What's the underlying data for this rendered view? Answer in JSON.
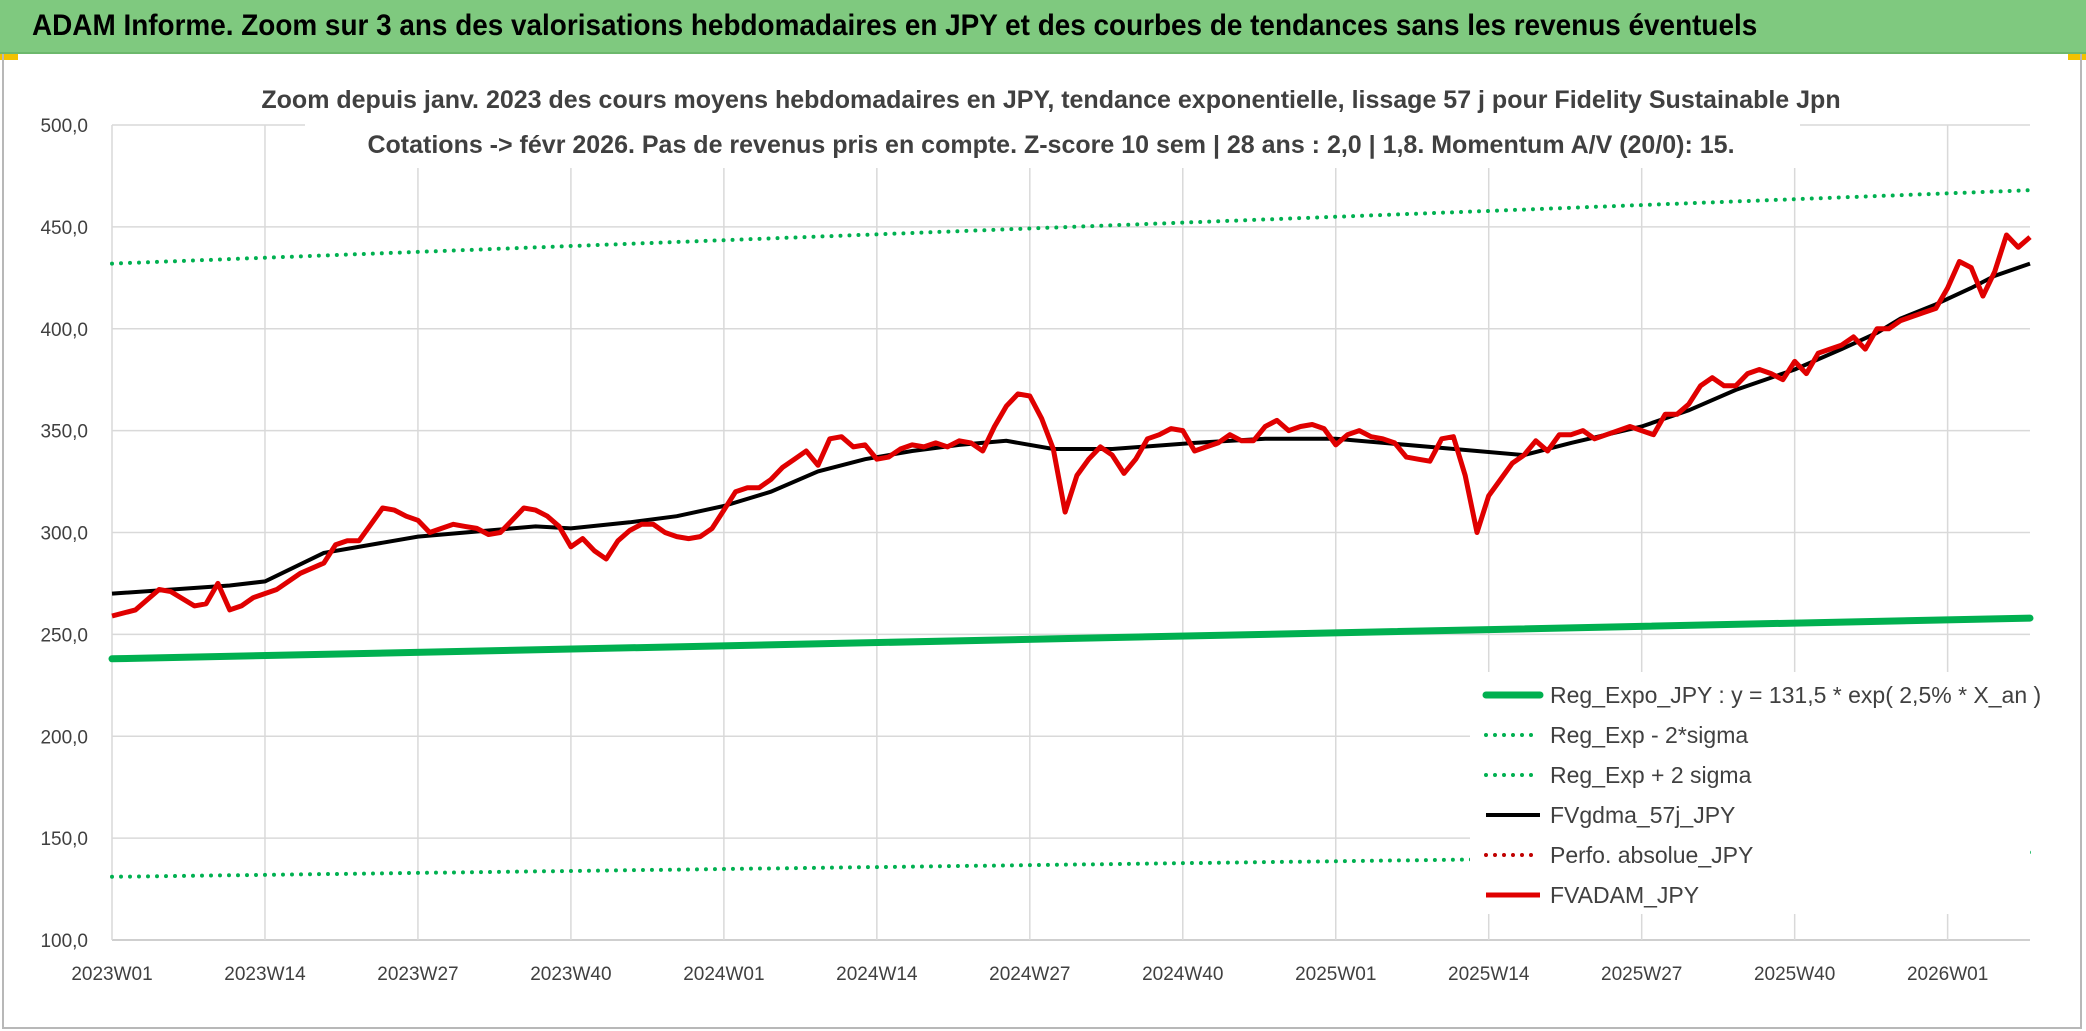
{
  "header": {
    "title": "ADAM Informe. Zoom sur 3 ans des valorisations hebdomadaires en JPY et des courbes de tendances sans les revenus éventuels"
  },
  "colors": {
    "header_bg": "#7fc97f",
    "reg_expo": "#00b050",
    "sigma": "#00b050",
    "fvgdma": "#000000",
    "perfo": "#c00000",
    "fvadam": "#e00000"
  },
  "chart_data": {
    "type": "line",
    "title_line1": "Zoom depuis janv. 2023 des cours moyens hebdomadaires en JPY, tendance exponentielle, lissage 57 j pour Fidelity Sustainable Jpn",
    "title_line2": "Cotations -> févr 2026. Pas de revenus pris en compte. Z-score 10 sem | 28 ans : 2,0 | 1,8. Momentum A/V (20/0): 15.",
    "x_tick_labels": [
      "2023W01",
      "2023W14",
      "2023W27",
      "2023W40",
      "2024W01",
      "2024W14",
      "2024W27",
      "2024W40",
      "2025W01",
      "2025W14",
      "2025W27",
      "2025W40",
      "2026W01"
    ],
    "y_tick_labels": [
      "100,0",
      "150,0",
      "200,0",
      "250,0",
      "300,0",
      "350,0",
      "400,0",
      "450,0",
      "500,0"
    ],
    "ylim": [
      100,
      500
    ],
    "x_week_range": [
      0,
      163
    ],
    "grid": true,
    "legend_position": "bottom-right",
    "series": [
      {
        "name": "Reg_Expo_JPY : y = 131,5 * exp( 2,5% *  X_an )",
        "style": "thick-solid",
        "color": "#00b050",
        "x": [
          0,
          163
        ],
        "y": [
          238,
          258
        ]
      },
      {
        "name": "Reg_Exp - 2*sigma",
        "style": "dotted",
        "color": "#00b050",
        "x": [
          0,
          163
        ],
        "y": [
          131,
          143
        ]
      },
      {
        "name": "Reg_Exp + 2 sigma",
        "style": "dotted",
        "color": "#00b050",
        "x": [
          0,
          163
        ],
        "y": [
          432,
          468
        ]
      },
      {
        "name": "FVgdma_57j_JPY",
        "style": "solid",
        "color": "#000000",
        "x": [
          0,
          10,
          13,
          18,
          26,
          32,
          36,
          39,
          44,
          48,
          52,
          56,
          60,
          64,
          68,
          72,
          76,
          80,
          85,
          92,
          98,
          104,
          112,
          120,
          124,
          130,
          134,
          138,
          143,
          147,
          150,
          152,
          155,
          158,
          160,
          163
        ],
        "y": [
          270,
          274,
          276,
          290,
          298,
          301,
          303,
          302,
          305,
          308,
          313,
          320,
          330,
          336,
          340,
          343,
          345,
          341,
          341,
          344,
          346,
          346,
          342,
          338,
          344,
          352,
          360,
          370,
          380,
          390,
          398,
          405,
          412,
          420,
          426,
          432
        ]
      },
      {
        "name": "Perfo. absolue_JPY",
        "style": "dotted",
        "color": "#c00000",
        "x": [],
        "y": []
      },
      {
        "name": "FVADAM_JPY",
        "style": "solid",
        "color": "#e00000",
        "x": [
          0,
          2,
          4,
          5,
          7,
          8,
          9,
          10,
          11,
          12,
          14,
          16,
          18,
          19,
          20,
          21,
          22,
          23,
          24,
          25,
          26,
          27,
          28,
          29,
          30,
          31,
          32,
          33,
          34,
          35,
          36,
          37,
          38,
          39,
          40,
          41,
          42,
          43,
          44,
          45,
          46,
          47,
          48,
          49,
          50,
          51,
          52,
          53,
          54,
          55,
          56,
          57,
          58,
          59,
          60,
          61,
          62,
          63,
          64,
          65,
          66,
          67,
          68,
          69,
          70,
          71,
          72,
          73,
          74,
          75,
          76,
          77,
          78,
          79,
          80,
          81,
          82,
          83,
          84,
          85,
          86,
          87,
          88,
          89,
          90,
          91,
          92,
          93,
          94,
          95,
          96,
          97,
          98,
          99,
          100,
          101,
          102,
          103,
          104,
          105,
          106,
          107,
          108,
          109,
          110,
          111,
          112,
          113,
          114,
          115,
          116,
          117,
          118,
          119,
          120,
          121,
          122,
          123,
          124,
          125,
          126,
          127,
          128,
          129,
          130,
          131,
          132,
          133,
          134,
          135,
          136,
          137,
          138,
          139,
          140,
          141,
          142,
          143,
          144,
          145,
          146,
          147,
          148,
          149,
          150,
          151,
          152,
          153,
          154,
          155,
          156,
          157,
          158,
          159,
          160,
          161,
          162,
          163
        ],
        "y": [
          259,
          262,
          272,
          271,
          264,
          265,
          275,
          262,
          264,
          268,
          272,
          280,
          285,
          294,
          296,
          296,
          304,
          312,
          311,
          308,
          306,
          300,
          302,
          304,
          303,
          302,
          299,
          300,
          306,
          312,
          311,
          308,
          303,
          293,
          297,
          291,
          287,
          296,
          301,
          304,
          304,
          300,
          298,
          297,
          298,
          302,
          311,
          320,
          322,
          322,
          326,
          332,
          336,
          340,
          333,
          346,
          347,
          342,
          343,
          336,
          337,
          341,
          343,
          342,
          344,
          342,
          345,
          344,
          340,
          352,
          362,
          368,
          367,
          356,
          341,
          310,
          328,
          336,
          342,
          338,
          329,
          336,
          346,
          348,
          351,
          350,
          340,
          342,
          344,
          348,
          345,
          345,
          352,
          355,
          350,
          352,
          353,
          351,
          343,
          348,
          350,
          347,
          346,
          344,
          337,
          336,
          335,
          346,
          347,
          328,
          300,
          318,
          326,
          334,
          338,
          345,
          340,
          348,
          348,
          350,
          346,
          348,
          350,
          352,
          350,
          348,
          358,
          358,
          363,
          372,
          376,
          372,
          372,
          378,
          380,
          378,
          375,
          384,
          378,
          388,
          390,
          392,
          396,
          390,
          400,
          400,
          404,
          406,
          408,
          410,
          420,
          433,
          430,
          416,
          428,
          446,
          440,
          445
        ]
      }
    ]
  }
}
